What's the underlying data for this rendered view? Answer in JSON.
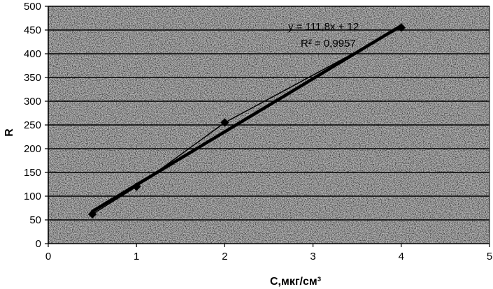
{
  "chart_data": {
    "type": "scatter",
    "title": "",
    "xlabel": "C,мкг/см³",
    "ylabel": "R",
    "xlim": [
      0,
      5
    ],
    "ylim": [
      0,
      500
    ],
    "xticks": [
      "0",
      "1",
      "2",
      "3",
      "4",
      "5"
    ],
    "yticks": [
      "0",
      "50",
      "100",
      "150",
      "200",
      "250",
      "300",
      "350",
      "400",
      "450",
      "500"
    ],
    "grid": "horizontal",
    "legend": "none",
    "series": [
      {
        "x": [
          0.5,
          1,
          2,
          4
        ],
        "y": [
          62,
          120,
          255,
          455
        ],
        "marker": "diamond",
        "line": "thin"
      }
    ],
    "trendline": {
      "slope": 111.8,
      "intercept": 12,
      "x_range": [
        0.5,
        4
      ],
      "equation_label": "y = 111,8x + 12",
      "r2_label": "R² = 0,9957"
    },
    "colors": {
      "plot_background": "#b8b8b8",
      "line": "#000000"
    }
  }
}
